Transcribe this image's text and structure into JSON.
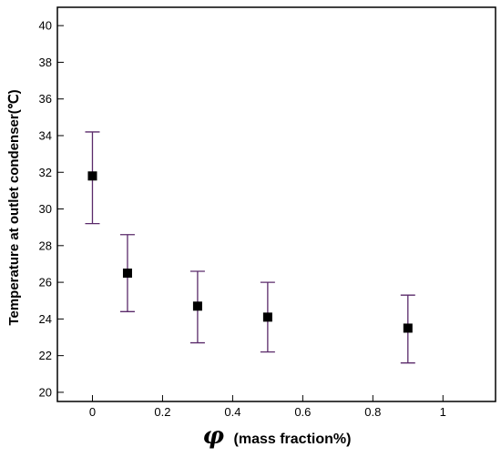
{
  "chart_data": {
    "type": "scatter",
    "xlabel_symbol": "φ",
    "xlabel_text": "(mass fraction%)",
    "ylabel": "Temperature at outlet condenser(℃)",
    "xlim": [
      -0.1,
      1.15
    ],
    "ylim": [
      19.5,
      41
    ],
    "x_ticks": [
      0,
      0.2,
      0.4,
      0.6,
      0.8,
      1
    ],
    "x_tick_labels": [
      "0",
      "0.2",
      "0.4",
      "0.6",
      "0.8",
      "1"
    ],
    "y_ticks": [
      20,
      22,
      24,
      26,
      28,
      30,
      32,
      34,
      36,
      38,
      40
    ],
    "y_tick_labels": [
      "20",
      "22",
      "24",
      "26",
      "28",
      "30",
      "32",
      "34",
      "36",
      "38",
      "40"
    ],
    "grid": false,
    "series": [
      {
        "x": [
          0,
          0.1,
          0.3,
          0.5,
          0.9
        ],
        "y": [
          31.8,
          26.5,
          24.7,
          24.1,
          23.5
        ],
        "y_upper": [
          34.2,
          28.6,
          26.6,
          26.0,
          25.3
        ],
        "y_lower": [
          29.2,
          24.4,
          22.7,
          22.2,
          21.6
        ],
        "marker": "square",
        "marker_color": "#000000",
        "errorbar_color": "#5a2a6a"
      }
    ]
  }
}
